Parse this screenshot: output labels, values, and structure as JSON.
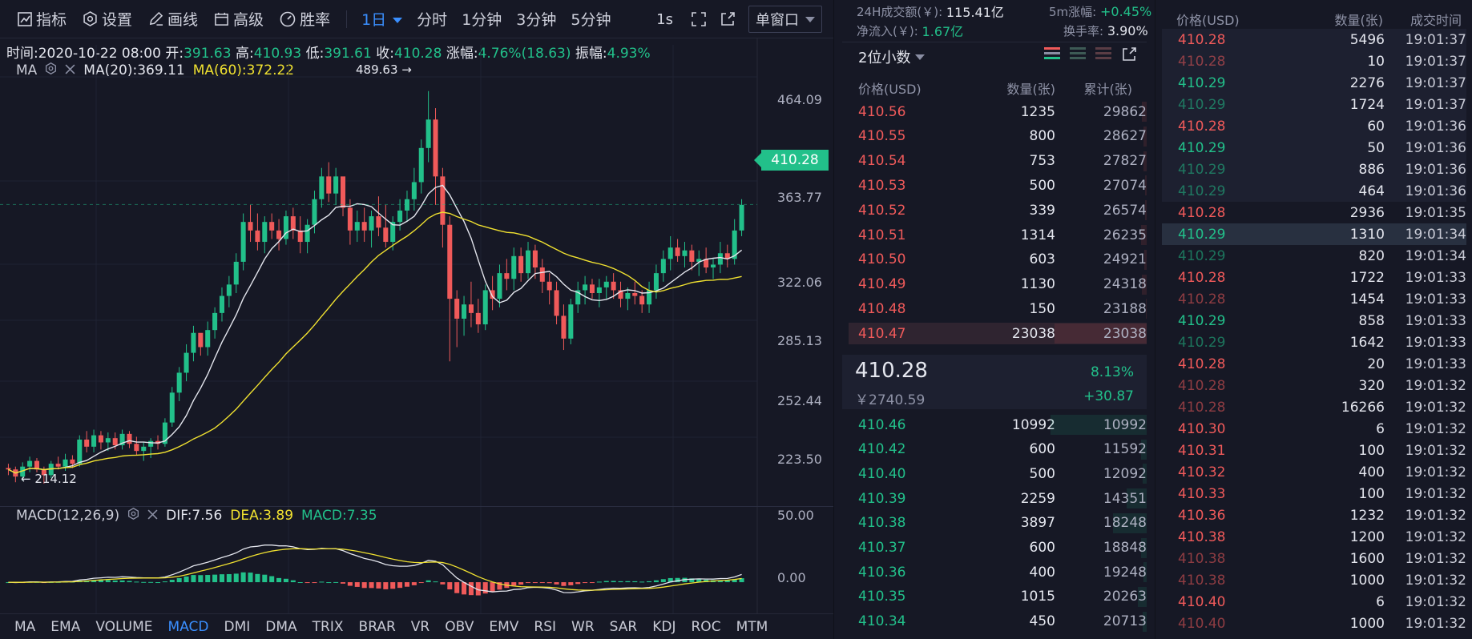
{
  "toolbar": {
    "indicators": "指标",
    "settings": "设置",
    "draw": "画线",
    "advanced": "高级",
    "winrate": "胜率",
    "periods": [
      "1日",
      "分时",
      "1分钟",
      "3分钟",
      "5分钟"
    ],
    "interval": "1s",
    "window_mode": "单窗口"
  },
  "ohlc": {
    "time": "时间:2020-10-22 08:00",
    "open_label": "开:",
    "open": "391.63",
    "high_label": "高:",
    "high": "410.93",
    "low_label": "低:",
    "low": "391.61",
    "close_label": "收:",
    "close": "410.28",
    "change_label": "涨幅:",
    "change": "4.76%(18.63)",
    "amp_label": "振幅:",
    "amp": "4.93%"
  },
  "ma_legend": {
    "name": "MA",
    "ma20": "MA(20):369.11",
    "ma60": "MA(60):372.22"
  },
  "macd_legend": {
    "name": "MACD(12,26,9)",
    "dif": "DIF:7.56",
    "dea": "DEA:3.89",
    "macd": "MACD:7.35"
  },
  "annotations": {
    "high": "489.63 →",
    "low": "← 214.12"
  },
  "price_axis": [
    "464.09",
    "410.28",
    "363.77",
    "322.06",
    "285.13",
    "252.44",
    "223.50"
  ],
  "current_price": "410.28",
  "macd_axis": [
    "50.00",
    "0.00"
  ],
  "indicator_tabs": [
    "MA",
    "EMA",
    "VOLUME",
    "MACD",
    "DMI",
    "DMA",
    "TRIX",
    "BRAR",
    "VR",
    "OBV",
    "EMV",
    "RSI",
    "WR",
    "SAR",
    "KDJ",
    "ROC",
    "MTM"
  ],
  "active_indicator": "MACD",
  "colors": {
    "up": "#22c08a",
    "down": "#f05a5a",
    "ma20": "#e4e6ee",
    "ma60": "#f0e130",
    "accent": "#3a8fff"
  },
  "chart_data": {
    "type": "candlestick",
    "ylim": [
      205,
      500
    ],
    "candles": [
      [
        225,
        228,
        220,
        224
      ],
      [
        224,
        226,
        215,
        219
      ],
      [
        219,
        229,
        216,
        226
      ],
      [
        226,
        233,
        222,
        230
      ],
      [
        230,
        232,
        222,
        224
      ],
      [
        224,
        226,
        214,
        220
      ],
      [
        220,
        230,
        218,
        228
      ],
      [
        228,
        233,
        224,
        226
      ],
      [
        226,
        235,
        223,
        231
      ],
      [
        231,
        234,
        225,
        228
      ],
      [
        228,
        248,
        226,
        245
      ],
      [
        245,
        251,
        236,
        240
      ],
      [
        240,
        252,
        236,
        248
      ],
      [
        248,
        251,
        238,
        243
      ],
      [
        243,
        250,
        237,
        246
      ],
      [
        246,
        250,
        238,
        241
      ],
      [
        241,
        252,
        238,
        249
      ],
      [
        249,
        251,
        239,
        242
      ],
      [
        242,
        247,
        234,
        237
      ],
      [
        237,
        243,
        230,
        240
      ],
      [
        240,
        246,
        232,
        244
      ],
      [
        244,
        248,
        238,
        242
      ],
      [
        242,
        260,
        240,
        257
      ],
      [
        257,
        282,
        254,
        278
      ],
      [
        278,
        296,
        272,
        292
      ],
      [
        292,
        312,
        286,
        306
      ],
      [
        306,
        325,
        300,
        320
      ],
      [
        320,
        318,
        304,
        310
      ],
      [
        310,
        328,
        304,
        322
      ],
      [
        322,
        338,
        316,
        334
      ],
      [
        334,
        352,
        328,
        346
      ],
      [
        346,
        360,
        338,
        354
      ],
      [
        354,
        376,
        348,
        370
      ],
      [
        370,
        404,
        364,
        398
      ],
      [
        398,
        410,
        384,
        392
      ],
      [
        392,
        404,
        378,
        384
      ],
      [
        384,
        402,
        376,
        398
      ],
      [
        398,
        404,
        386,
        392
      ],
      [
        392,
        400,
        378,
        386
      ],
      [
        386,
        406,
        382,
        402
      ],
      [
        402,
        408,
        386,
        392
      ],
      [
        392,
        402,
        376,
        384
      ],
      [
        384,
        400,
        376,
        396
      ],
      [
        396,
        420,
        390,
        414
      ],
      [
        414,
        436,
        408,
        430
      ],
      [
        430,
        440,
        412,
        418
      ],
      [
        418,
        436,
        410,
        430
      ],
      [
        430,
        428,
        402,
        408
      ],
      [
        408,
        414,
        382,
        392
      ],
      [
        392,
        406,
        384,
        398
      ],
      [
        398,
        408,
        384,
        392
      ],
      [
        392,
        406,
        380,
        402
      ],
      [
        402,
        416,
        388,
        394
      ],
      [
        394,
        410,
        380,
        384
      ],
      [
        384,
        402,
        378,
        398
      ],
      [
        398,
        414,
        392,
        406
      ],
      [
        406,
        420,
        398,
        414
      ],
      [
        414,
        436,
        406,
        426
      ],
      [
        426,
        456,
        418,
        450
      ],
      [
        450,
        490,
        440,
        470
      ],
      [
        470,
        478,
        410,
        430
      ],
      [
        430,
        436,
        380,
        396
      ],
      [
        396,
        402,
        300,
        344
      ],
      [
        344,
        350,
        310,
        330
      ],
      [
        330,
        346,
        318,
        340
      ],
      [
        340,
        356,
        324,
        334
      ],
      [
        334,
        344,
        320,
        326
      ],
      [
        326,
        354,
        322,
        350
      ],
      [
        350,
        360,
        336,
        344
      ],
      [
        344,
        368,
        338,
        362
      ],
      [
        362,
        372,
        350,
        358
      ],
      [
        358,
        380,
        350,
        374
      ],
      [
        374,
        380,
        356,
        362
      ],
      [
        362,
        384,
        358,
        378
      ],
      [
        378,
        382,
        358,
        366
      ],
      [
        366,
        372,
        348,
        356
      ],
      [
        356,
        362,
        340,
        350
      ],
      [
        350,
        356,
        326,
        332
      ],
      [
        332,
        340,
        308,
        316
      ],
      [
        316,
        344,
        312,
        340
      ],
      [
        340,
        356,
        334,
        350
      ],
      [
        350,
        360,
        340,
        354
      ],
      [
        354,
        358,
        344,
        348
      ],
      [
        348,
        358,
        338,
        352
      ],
      [
        352,
        360,
        344,
        356
      ],
      [
        356,
        362,
        344,
        350
      ],
      [
        350,
        356,
        338,
        344
      ],
      [
        344,
        352,
        336,
        348
      ],
      [
        348,
        356,
        340,
        346
      ],
      [
        346,
        350,
        334,
        340
      ],
      [
        340,
        356,
        334,
        350
      ],
      [
        350,
        368,
        344,
        362
      ],
      [
        362,
        378,
        356,
        372
      ],
      [
        372,
        388,
        364,
        380
      ],
      [
        380,
        386,
        370,
        374
      ],
      [
        374,
        384,
        366,
        378
      ],
      [
        378,
        382,
        364,
        370
      ],
      [
        370,
        378,
        360,
        372
      ],
      [
        372,
        380,
        362,
        366
      ],
      [
        366,
        372,
        358,
        368
      ],
      [
        368,
        384,
        362,
        376
      ],
      [
        376,
        382,
        366,
        372
      ],
      [
        372,
        400,
        368,
        392
      ],
      [
        392,
        414,
        388,
        410
      ]
    ],
    "macd": {
      "ylim": [
        -30,
        55
      ]
    }
  },
  "orderbook": {
    "stats": {
      "vol_label": "24H成交额(￥):",
      "vol": "115.41亿",
      "chg5m_label": "5m涨幅:",
      "chg5m": "+0.45%",
      "inflow_label": "净流入(￥):",
      "inflow": "1.67亿",
      "turnover_label": "换手率:",
      "turnover": "3.90%"
    },
    "decimals": "2位小数",
    "columns": [
      "价格(USD)",
      "数量(张)",
      "累计(张)"
    ],
    "asks": [
      [
        "410.56",
        "1235",
        "29862"
      ],
      [
        "410.55",
        "800",
        "28627"
      ],
      [
        "410.54",
        "753",
        "27827"
      ],
      [
        "410.53",
        "500",
        "27074"
      ],
      [
        "410.52",
        "339",
        "26574"
      ],
      [
        "410.51",
        "1314",
        "26235"
      ],
      [
        "410.50",
        "603",
        "24921"
      ],
      [
        "410.49",
        "1130",
        "24318"
      ],
      [
        "410.48",
        "150",
        "23188"
      ],
      [
        "410.47",
        "23038",
        "23038"
      ]
    ],
    "mid": {
      "price": "410.28",
      "cny": "￥2740.59",
      "pct": "8.13%",
      "chg": "+30.87"
    },
    "bids": [
      [
        "410.46",
        "10992",
        "10992"
      ],
      [
        "410.42",
        "600",
        "11592"
      ],
      [
        "410.40",
        "500",
        "12092"
      ],
      [
        "410.39",
        "2259",
        "14351"
      ],
      [
        "410.38",
        "3897",
        "18248"
      ],
      [
        "410.37",
        "600",
        "18848"
      ],
      [
        "410.36",
        "400",
        "19248"
      ],
      [
        "410.35",
        "1015",
        "20263"
      ],
      [
        "410.34",
        "450",
        "20713"
      ]
    ]
  },
  "trades": {
    "columns": [
      "价格(USD)",
      "数量(张)",
      "成交时间"
    ],
    "rows": [
      [
        "410.28",
        "5496",
        "19:01:37",
        "sell",
        0
      ],
      [
        "410.28",
        "10",
        "19:01:37",
        "sell",
        1
      ],
      [
        "410.29",
        "2276",
        "19:01:37",
        "buy",
        0
      ],
      [
        "410.29",
        "1724",
        "19:01:37",
        "buy",
        1
      ],
      [
        "410.28",
        "60",
        "19:01:36",
        "sell",
        0
      ],
      [
        "410.29",
        "50",
        "19:01:36",
        "buy",
        0
      ],
      [
        "410.29",
        "886",
        "19:01:36",
        "buy",
        1
      ],
      [
        "410.29",
        "464",
        "19:01:36",
        "buy",
        1
      ],
      [
        "410.28",
        "2936",
        "19:01:35",
        "sell",
        0
      ],
      [
        "410.29",
        "1310",
        "19:01:34",
        "buy",
        0
      ],
      [
        "410.29",
        "820",
        "19:01:34",
        "buy",
        1
      ],
      [
        "410.28",
        "1722",
        "19:01:33",
        "sell",
        0
      ],
      [
        "410.28",
        "1454",
        "19:01:33",
        "sell",
        1
      ],
      [
        "410.29",
        "858",
        "19:01:33",
        "buy",
        0
      ],
      [
        "410.29",
        "1642",
        "19:01:33",
        "buy",
        1
      ],
      [
        "410.28",
        "20",
        "19:01:33",
        "sell",
        0
      ],
      [
        "410.28",
        "320",
        "19:01:32",
        "sell",
        1
      ],
      [
        "410.28",
        "16266",
        "19:01:32",
        "sell",
        1
      ],
      [
        "410.30",
        "6",
        "19:01:32",
        "sell",
        0
      ],
      [
        "410.31",
        "100",
        "19:01:32",
        "sell",
        0
      ],
      [
        "410.32",
        "400",
        "19:01:32",
        "sell",
        0
      ],
      [
        "410.33",
        "100",
        "19:01:32",
        "sell",
        0
      ],
      [
        "410.36",
        "1232",
        "19:01:32",
        "sell",
        0
      ],
      [
        "410.38",
        "1200",
        "19:01:32",
        "sell",
        0
      ],
      [
        "410.38",
        "1600",
        "19:01:32",
        "sell",
        1
      ],
      [
        "410.38",
        "1000",
        "19:01:32",
        "sell",
        1
      ],
      [
        "410.40",
        "6",
        "19:01:32",
        "sell",
        0
      ],
      [
        "410.40",
        "1000",
        "19:01:32",
        "sell",
        1
      ]
    ]
  }
}
